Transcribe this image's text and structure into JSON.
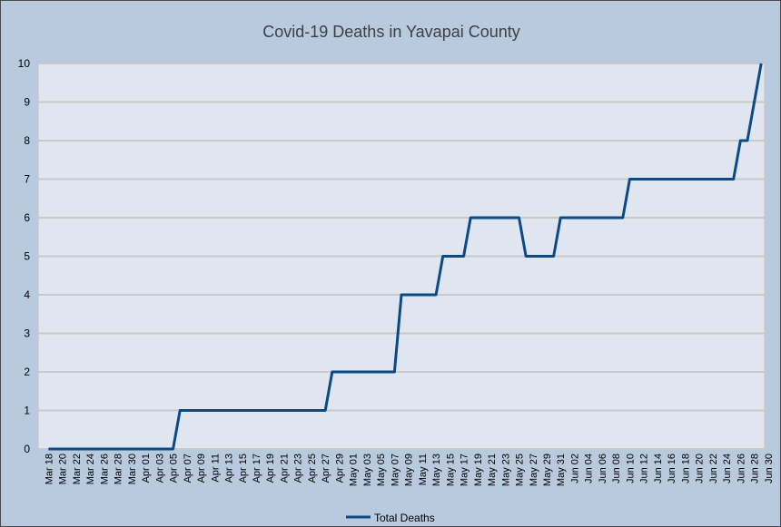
{
  "chart_data": {
    "type": "line",
    "title": "Covid-19 Deaths in Yavapai County",
    "xlabel": "",
    "ylabel": "",
    "ylim": [
      0,
      10
    ],
    "yticks": [
      "0",
      "1",
      "2",
      "3",
      "4",
      "5",
      "6",
      "7",
      "8",
      "9",
      "10"
    ],
    "grid": true,
    "legend_position": "bottom",
    "x_tick_labels": [
      "Mar 18",
      "Mar 20",
      "Mar 22",
      "Mar 24",
      "Mar 26",
      "Mar 28",
      "Mar 30",
      "Apr 01",
      "Apr 03",
      "Apr 05",
      "Apr 07",
      "Apr 09",
      "Apr 11",
      "Apr 13",
      "Apr 15",
      "Apr 17",
      "Apr 19",
      "Apr 21",
      "Apr 23",
      "Apr 25",
      "Apr 27",
      "Apr 29",
      "May 01",
      "May 03",
      "May 05",
      "May 07",
      "May 09",
      "May 11",
      "May 13",
      "May 15",
      "May 17",
      "May 19",
      "May 21",
      "May 23",
      "May 25",
      "May 27",
      "May 29",
      "May 31",
      "Jun 02",
      "Jun 04",
      "Jun 06",
      "Jun 08",
      "Jun 10",
      "Jun 12",
      "Jun 14",
      "Jun 16",
      "Jun 18",
      "Jun 20",
      "Jun 22",
      "Jun 24",
      "Jun 26",
      "Jun 28",
      "Jun 30"
    ],
    "series": [
      {
        "name": "Total Deaths",
        "color": "#0b4a86",
        "points": [
          {
            "x": "Mar 18",
            "y": 0
          },
          {
            "x": "Apr 05",
            "y": 0
          },
          {
            "x": "Apr 06",
            "y": 1
          },
          {
            "x": "Apr 27",
            "y": 1
          },
          {
            "x": "Apr 28",
            "y": 2
          },
          {
            "x": "May 07",
            "y": 2
          },
          {
            "x": "May 08",
            "y": 4
          },
          {
            "x": "May 13",
            "y": 4
          },
          {
            "x": "May 14",
            "y": 5
          },
          {
            "x": "May 17",
            "y": 5
          },
          {
            "x": "May 18",
            "y": 6
          },
          {
            "x": "May 25",
            "y": 6
          },
          {
            "x": "May 26",
            "y": 5
          },
          {
            "x": "May 30",
            "y": 5
          },
          {
            "x": "May 31",
            "y": 6
          },
          {
            "x": "Jun 09",
            "y": 6
          },
          {
            "x": "Jun 10",
            "y": 7
          },
          {
            "x": "Jun 25",
            "y": 7
          },
          {
            "x": "Jun 26",
            "y": 8
          },
          {
            "x": "Jun 27",
            "y": 8
          },
          {
            "x": "Jun 28",
            "y": 9
          },
          {
            "x": "Jun 29",
            "y": 10
          }
        ]
      }
    ]
  }
}
